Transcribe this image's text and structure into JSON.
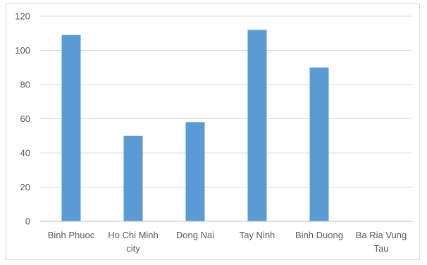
{
  "chart_data": {
    "type": "bar",
    "categories": [
      [
        "Binh Phuoc"
      ],
      [
        "Ho Chi Minh",
        "city"
      ],
      [
        "Dong Nai"
      ],
      [
        "Tay Ninh"
      ],
      [
        "Binh Duong"
      ],
      [
        "Ba Ria Vung",
        "Tau"
      ]
    ],
    "values": [
      109,
      50,
      58,
      112,
      90,
      0
    ],
    "y_ticks": [
      "0",
      "20",
      "40",
      "60",
      "80",
      "100",
      "120"
    ],
    "ylim": [
      0,
      120
    ],
    "title": "",
    "xlabel": "",
    "ylabel": "",
    "grid": true,
    "legend": "none",
    "bar_color": "#5b9bd5",
    "grid_color": "#d9d9d9",
    "axis_color": "#bfbfbf"
  }
}
